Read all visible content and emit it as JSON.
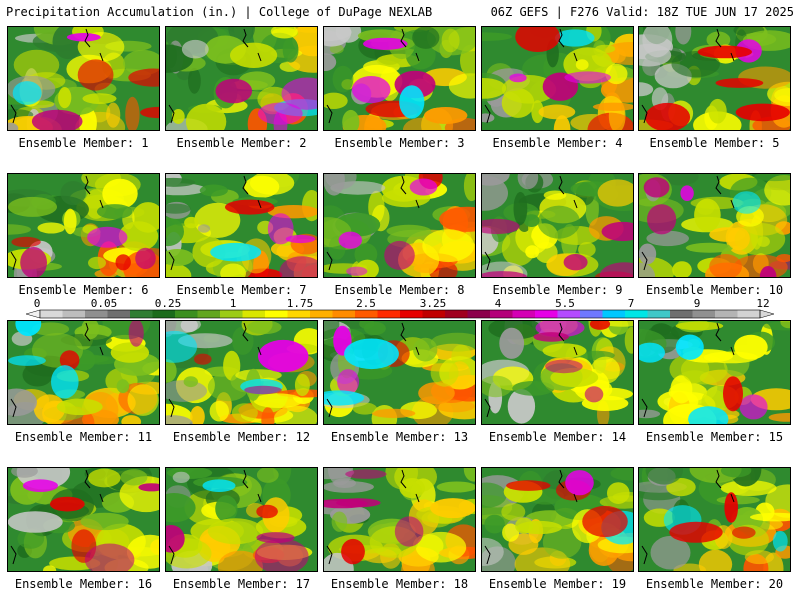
{
  "header": {
    "title": "Precipitation Accumulation (in.) | College of DuPage NEXLAB",
    "run_info": "06Z GEFS | F276 Valid: 18Z TUE JUN 17 2025"
  },
  "member_label_prefix": "Ensemble Member:",
  "members": [
    {
      "number": "1"
    },
    {
      "number": "2"
    },
    {
      "number": "3"
    },
    {
      "number": "4"
    },
    {
      "number": "5"
    },
    {
      "number": "6"
    },
    {
      "number": "7"
    },
    {
      "number": "8"
    },
    {
      "number": "9"
    },
    {
      "number": "10"
    },
    {
      "number": "11"
    },
    {
      "number": "12"
    },
    {
      "number": "13"
    },
    {
      "number": "14"
    },
    {
      "number": "15"
    },
    {
      "number": "16"
    },
    {
      "number": "17"
    },
    {
      "number": "18"
    },
    {
      "number": "19"
    },
    {
      "number": "20"
    }
  ],
  "legend": {
    "tick_labels": [
      "0",
      "0.05",
      "0.25",
      "1",
      "1.75",
      "2.5",
      "3.25",
      "4",
      "5.5",
      "7",
      "9",
      "12"
    ],
    "colors": [
      "#d9d9d9",
      "#bdbdbd",
      "#8f8f8f",
      "#6e6e6e",
      "#2f7d32",
      "#1b6b1b",
      "#3b8f1e",
      "#62a61e",
      "#9ccc16",
      "#d9e600",
      "#ffff00",
      "#ffd700",
      "#ffb000",
      "#ff8c00",
      "#ff5a00",
      "#ff2a00",
      "#e60000",
      "#c00000",
      "#a0001e",
      "#8c004b",
      "#b4007a",
      "#d400b4",
      "#e600e6",
      "#b44bff",
      "#6e78ff",
      "#00c8ff",
      "#00e6e6",
      "#40c8c8",
      "#6e6e6e",
      "#909090",
      "#b4b4b4",
      "#d2d2d2"
    ]
  }
}
